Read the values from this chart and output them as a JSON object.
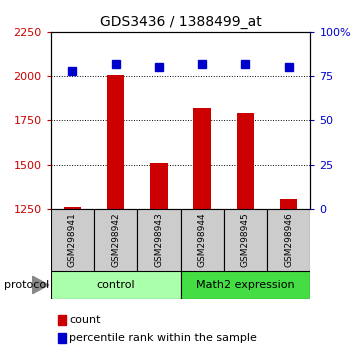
{
  "title": "GDS3436 / 1388499_at",
  "samples": [
    "GSM298941",
    "GSM298942",
    "GSM298943",
    "GSM298944",
    "GSM298945",
    "GSM298946"
  ],
  "counts": [
    1262,
    2008,
    1510,
    1820,
    1790,
    1305
  ],
  "percentile_ranks": [
    78,
    82,
    80,
    82,
    82,
    80
  ],
  "ylim_left": [
    1250,
    2250
  ],
  "ylim_right": [
    0,
    100
  ],
  "yticks_left": [
    1250,
    1500,
    1750,
    2000,
    2250
  ],
  "ytick_labels_left": [
    "1250",
    "1500",
    "1750",
    "2000",
    "2250"
  ],
  "yticks_right": [
    0,
    25,
    50,
    75,
    100
  ],
  "ytick_labels_right": [
    "0",
    "25",
    "50",
    "75",
    "100%"
  ],
  "bar_color": "#cc0000",
  "dot_color": "#0000cc",
  "bar_width": 0.4,
  "groups": [
    {
      "label": "control",
      "indices": [
        0,
        1,
        2
      ],
      "color": "#aaffaa"
    },
    {
      "label": "Math2 expression",
      "indices": [
        3,
        4,
        5
      ],
      "color": "#44dd44"
    }
  ],
  "protocol_label": "protocol",
  "legend_count_label": "count",
  "legend_percentile_label": "percentile rank within the sample",
  "plot_bg_color": "#ffffff",
  "sample_bg_color": "#cccccc"
}
